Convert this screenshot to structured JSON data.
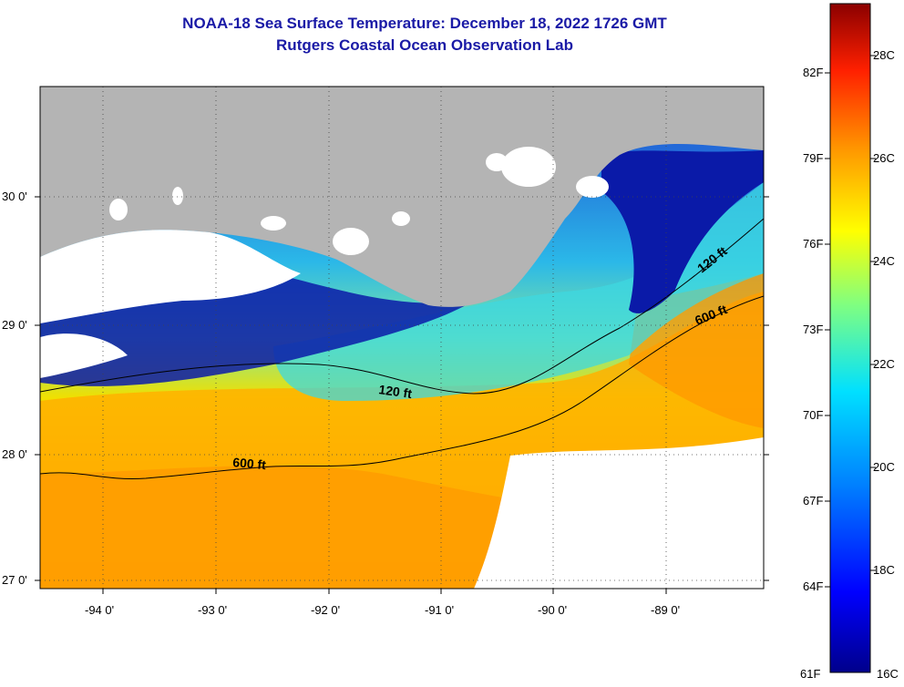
{
  "header": {
    "title": "NOAA-18 Sea Surface Temperature:  December 18, 2022 1726 GMT",
    "subtitle": "Rutgers Coastal Ocean Observation Lab"
  },
  "map": {
    "lat_labels": [
      "30 0'",
      "29 0'",
      "28 0'",
      "27 0'"
    ],
    "lon_labels": [
      "-94 0'",
      "-93 0'",
      "-92 0'",
      "-91 0'",
      "-90 0'",
      "-89 0'"
    ],
    "contour_labels": [
      "120 ft",
      "600 ft",
      "120 ft",
      "600 ft"
    ],
    "colors": {
      "land": "#b4b4b4",
      "cloud": "#ffffff",
      "cold": "#00008b",
      "warm": "#ff9900"
    }
  },
  "colorbar": {
    "fahrenheit_labels": [
      "82F",
      "79F",
      "76F",
      "73F",
      "70F",
      "67F",
      "64F",
      "61F"
    ],
    "celsius_labels": [
      "28C",
      "26C",
      "24C",
      "22C",
      "20C",
      "18C",
      "16C"
    ],
    "range_c": [
      16,
      29
    ]
  }
}
